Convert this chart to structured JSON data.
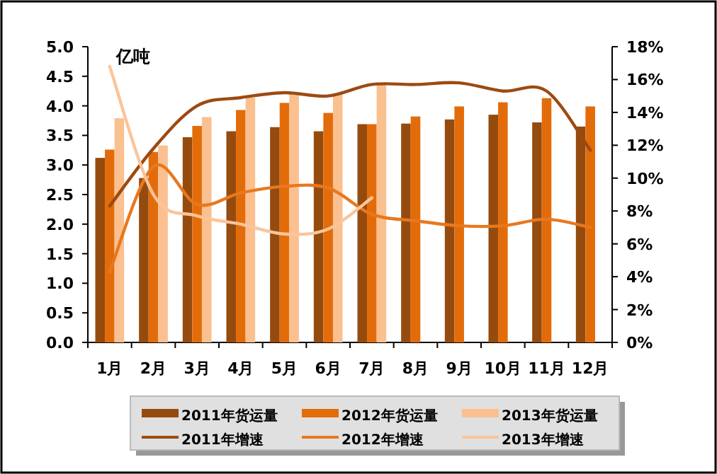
{
  "chart_data": {
    "type": "bar",
    "ylabel": "亿吨",
    "categories": [
      "1月",
      "2月",
      "3月",
      "4月",
      "5月",
      "6月",
      "7月",
      "8月",
      "9月",
      "10月",
      "11月",
      "12月"
    ],
    "series": [
      {
        "name": "2011年货运量",
        "color": "#964b0e",
        "values": [
          3.12,
          2.78,
          3.47,
          3.57,
          3.64,
          3.57,
          3.69,
          3.7,
          3.77,
          3.85,
          3.72,
          3.65
        ]
      },
      {
        "name": "2012年货运量",
        "color": "#e36c0a",
        "values": [
          3.26,
          3.22,
          3.66,
          3.93,
          4.05,
          3.88,
          3.69,
          3.82,
          3.99,
          4.06,
          4.13,
          3.99
        ]
      },
      {
        "name": "2013年货运量",
        "color": "#fac090",
        "values": [
          3.79,
          3.33,
          3.81,
          4.14,
          4.22,
          4.21,
          4.36,
          null,
          null,
          null,
          null,
          null
        ]
      },
      {
        "name": "2011年增速",
        "type": "line",
        "axis": "y2",
        "color": "#9c4a12",
        "values": [
          8.3,
          11.8,
          14.4,
          14.9,
          15.2,
          15.0,
          15.7,
          15.7,
          15.8,
          15.3,
          15.3,
          11.7
        ]
      },
      {
        "name": "2012年增速",
        "type": "line",
        "axis": "y2",
        "color": "#e8781e",
        "values": [
          4.3,
          10.7,
          8.4,
          9.1,
          9.5,
          9.4,
          7.8,
          7.4,
          7.1,
          7.1,
          7.5,
          7.0
        ]
      },
      {
        "name": "2013年增速",
        "type": "line",
        "axis": "y2",
        "color": "#fbc49a",
        "values": [
          16.8,
          9.0,
          7.7,
          7.2,
          6.6,
          6.9,
          8.8,
          null,
          null,
          null,
          null,
          null
        ]
      }
    ],
    "ylim": [
      0,
      5
    ],
    "yticks": [
      {
        "value": 0,
        "label": "0.0"
      },
      {
        "value": 0.5,
        "label": "0.5"
      },
      {
        "value": 1,
        "label": "1.0"
      },
      {
        "value": 1.5,
        "label": "1.5"
      },
      {
        "value": 2,
        "label": "2.0"
      },
      {
        "value": 2.5,
        "label": "2.5"
      },
      {
        "value": 3,
        "label": "3.0"
      },
      {
        "value": 3.5,
        "label": "3.5"
      },
      {
        "value": 4,
        "label": "4.0"
      },
      {
        "value": 4.5,
        "label": "4.5"
      },
      {
        "value": 5,
        "label": "5.0"
      }
    ],
    "y2lim": [
      0,
      18
    ],
    "y2ticks": [
      {
        "value": 0,
        "label": "0%"
      },
      {
        "value": 2,
        "label": "2%"
      },
      {
        "value": 4,
        "label": "4%"
      },
      {
        "value": 6,
        "label": "6%"
      },
      {
        "value": 8,
        "label": "8%"
      },
      {
        "value": 10,
        "label": "10%"
      },
      {
        "value": 12,
        "label": "12%"
      },
      {
        "value": 14,
        "label": "14%"
      },
      {
        "value": 16,
        "label": "16%"
      },
      {
        "value": 18,
        "label": "18%"
      }
    ],
    "legend": "bottom",
    "grid": false
  }
}
